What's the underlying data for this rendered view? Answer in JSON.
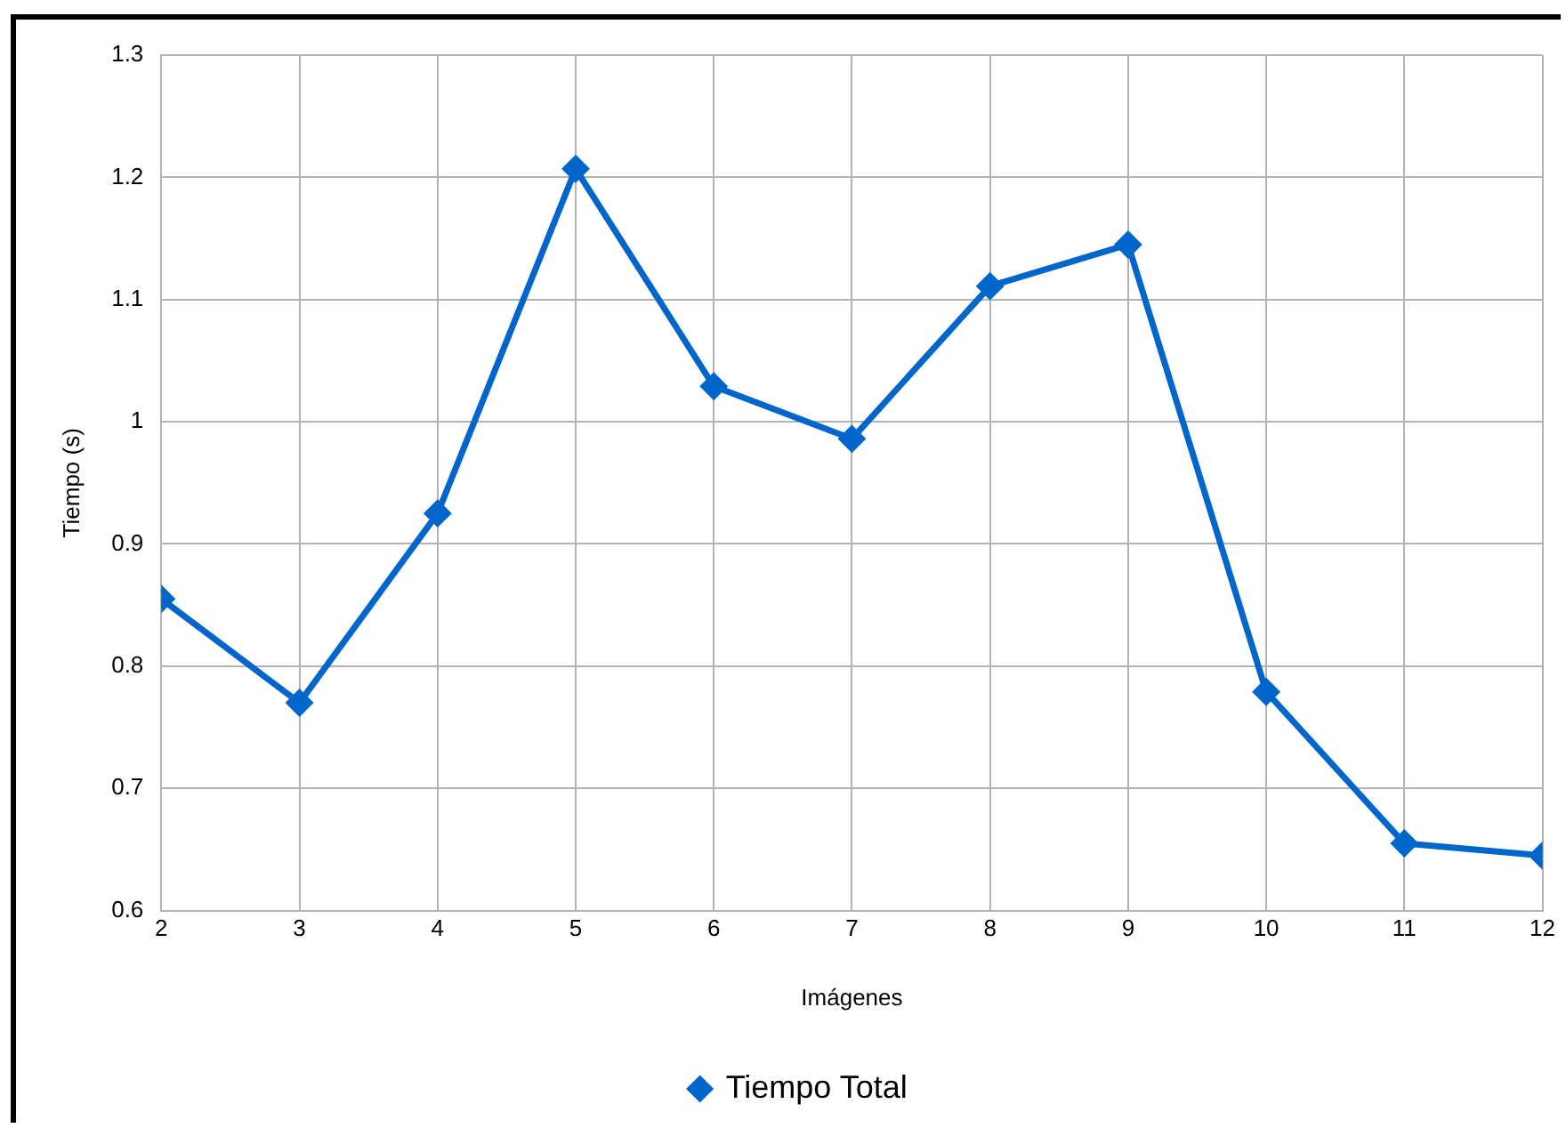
{
  "chart_data": {
    "type": "line",
    "xlabel": "Imágenes",
    "ylabel": "Tiempo (s)",
    "x": [
      2,
      3,
      4,
      5,
      6,
      7,
      8,
      9,
      10,
      11,
      12
    ],
    "series": [
      {
        "name": "Tiempo Total",
        "color": "#0066cc",
        "values": [
          0.855,
          0.77,
          0.925,
          1.207,
          1.029,
          0.986,
          1.111,
          1.145,
          0.779,
          0.655,
          0.645
        ]
      }
    ],
    "xlim": [
      2,
      12
    ],
    "xticks": [
      2,
      3,
      4,
      5,
      6,
      7,
      8,
      9,
      10,
      11,
      12
    ],
    "ylim": [
      0.6,
      1.3
    ],
    "yticks": [
      0.6,
      0.7,
      0.8,
      0.9,
      1,
      1.1,
      1.2,
      1.3
    ],
    "grid": true,
    "legend": "bottom",
    "marker": "diamond",
    "line_style": "solid"
  }
}
